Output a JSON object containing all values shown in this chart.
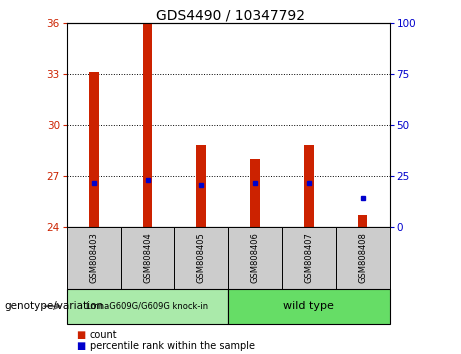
{
  "title": "GDS4490 / 10347792",
  "samples": [
    "GSM808403",
    "GSM808404",
    "GSM808405",
    "GSM808406",
    "GSM808407",
    "GSM808408"
  ],
  "bar_bottoms": [
    24,
    24,
    24,
    24,
    24,
    24
  ],
  "bar_tops": [
    33.1,
    36.0,
    28.8,
    28.0,
    28.8,
    24.7
  ],
  "percentile_ranks": [
    26.55,
    26.75,
    26.45,
    26.55,
    26.55,
    25.7
  ],
  "ylim_left": [
    24,
    36
  ],
  "ylim_right": [
    0,
    100
  ],
  "yticks_left": [
    24,
    27,
    30,
    33,
    36
  ],
  "yticks_right": [
    0,
    25,
    50,
    75,
    100
  ],
  "bar_color": "#cc2200",
  "dot_color": "#0000cc",
  "group1_label": "LmnaG609G/G609G knock-in",
  "group2_label": "wild type",
  "group1_indices": [
    0,
    1,
    2
  ],
  "group2_indices": [
    3,
    4,
    5
  ],
  "group1_bg": "#aaeaaa",
  "group2_bg": "#66dd66",
  "sample_bg": "#cccccc",
  "xlabel_bottom": "genotype/variation",
  "legend1": "count",
  "legend2": "percentile rank within the sample",
  "bar_width": 0.18
}
